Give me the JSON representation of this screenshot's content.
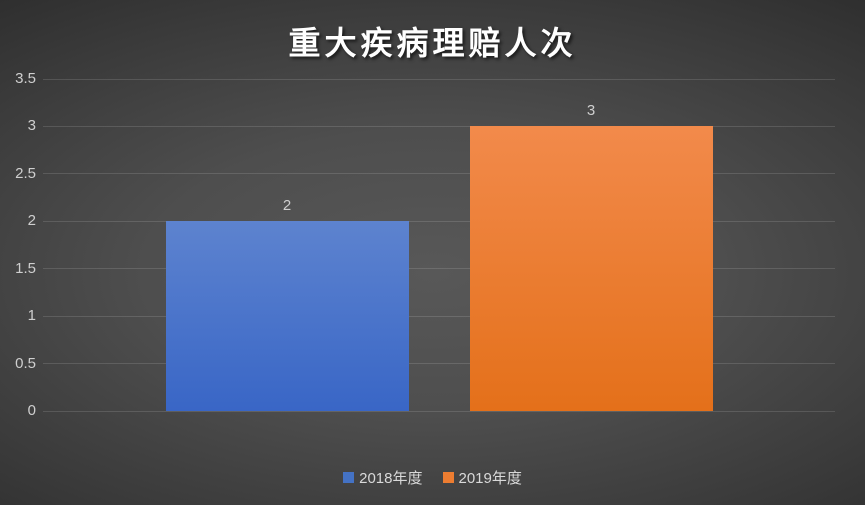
{
  "chart_data": {
    "type": "bar",
    "title": "重大疾病理赔人次",
    "categories": [
      ""
    ],
    "series": [
      {
        "name": "2018年度",
        "values": [
          2
        ],
        "color": "#4472c4",
        "gradient_top": "#5d83cf",
        "gradient_bottom": "#3966c6",
        "data_label": "2"
      },
      {
        "name": "2019年度",
        "values": [
          3
        ],
        "color": "#ed7d31",
        "gradient_top": "#f28a4b",
        "gradient_bottom": "#e4701a",
        "data_label": "3"
      }
    ],
    "ylim": [
      0,
      3.5
    ],
    "ytick_step": 0.5,
    "ytick_labels": [
      "0",
      "0.5",
      "1",
      "1.5",
      "2",
      "2.5",
      "3",
      "3.5"
    ],
    "grid": true,
    "legend_position": "bottom",
    "colors": {
      "background_center": "#585858",
      "background_edge": "#262626",
      "gridline": "rgba(255,255,255,0.13)",
      "axis_text": "#cfcfcf",
      "legend_text": "#d9d9d9",
      "title_text": "#ffffff"
    }
  }
}
